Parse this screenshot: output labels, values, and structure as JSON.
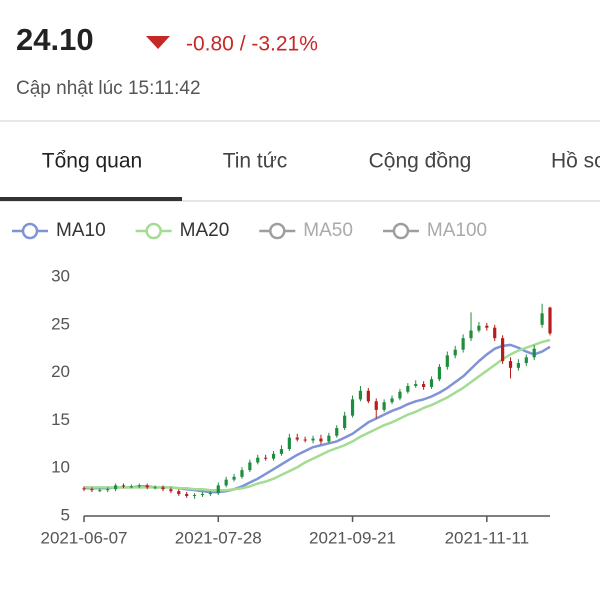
{
  "header": {
    "price": "24.10",
    "change": "-0.80 / -3.21%",
    "updated": "Cập nhật lúc 15:11:42"
  },
  "tabs": [
    "Tổng quan",
    "Tin tức",
    "Cộng đồng",
    "Hồ sơ"
  ],
  "chart_data": {
    "type": "candlestick",
    "categories": [
      "2021-06-07",
      null,
      null,
      null,
      null,
      null,
      null,
      null,
      null,
      null,
      null,
      null,
      null,
      null,
      null,
      null,
      null,
      "2021-07-28",
      null,
      null,
      null,
      null,
      null,
      null,
      null,
      null,
      null,
      null,
      null,
      null,
      null,
      null,
      null,
      null,
      "2021-09-21",
      null,
      null,
      null,
      null,
      null,
      null,
      null,
      null,
      null,
      null,
      null,
      null,
      null,
      null,
      null,
      null,
      "2021-11-11",
      null,
      null,
      null,
      null,
      null,
      null,
      null,
      null
    ],
    "open": [
      7.9,
      7.8,
      7.7,
      7.7,
      7.8,
      8.2,
      8.1,
      8.1,
      8.2,
      8.0,
      8.0,
      7.8,
      7.6,
      7.3,
      7.1,
      7.2,
      7.3,
      7.4,
      8.2,
      8.8,
      9.1,
      9.8,
      10.6,
      11.1,
      11.0,
      11.5,
      12.0,
      13.2,
      13.0,
      12.9,
      13.1,
      12.8,
      13.4,
      14.2,
      15.5,
      17.2,
      18.1,
      17.0,
      16.1,
      16.9,
      17.3,
      18.0,
      18.6,
      18.8,
      18.5,
      19.3,
      20.6,
      21.8,
      22.4,
      23.6,
      24.4,
      24.9,
      24.7,
      23.6,
      21.2,
      20.5,
      21.0,
      21.6,
      25.0,
      26.8
    ],
    "high": [
      8.1,
      8.0,
      7.9,
      8.0,
      8.4,
      8.4,
      8.3,
      8.4,
      8.4,
      8.2,
      8.2,
      8.0,
      7.8,
      7.5,
      7.4,
      7.5,
      7.6,
      8.5,
      9.1,
      9.4,
      10.1,
      10.9,
      11.4,
      11.4,
      11.8,
      12.4,
      13.6,
      13.6,
      13.3,
      13.4,
      13.5,
      13.7,
      14.5,
      15.9,
      17.6,
      18.6,
      18.4,
      17.3,
      17.2,
      17.6,
      18.3,
      18.9,
      19.2,
      19.1,
      19.6,
      20.9,
      22.2,
      22.8,
      24.0,
      26.3,
      25.3,
      25.2,
      25.0,
      23.9,
      21.6,
      21.4,
      21.9,
      22.9,
      27.2,
      26.9
    ],
    "low": [
      7.6,
      7.5,
      7.5,
      7.5,
      7.6,
      7.9,
      7.9,
      7.9,
      7.8,
      7.8,
      7.6,
      7.4,
      7.1,
      6.9,
      6.8,
      7.0,
      7.1,
      7.2,
      8.0,
      8.6,
      8.9,
      9.6,
      10.4,
      10.8,
      10.8,
      11.3,
      11.8,
      12.8,
      12.7,
      12.6,
      12.5,
      12.6,
      13.2,
      14.0,
      15.3,
      17.0,
      16.8,
      15.2,
      15.9,
      16.7,
      17.1,
      17.8,
      18.4,
      18.2,
      18.3,
      19.1,
      20.3,
      21.5,
      22.1,
      23.3,
      24.2,
      24.4,
      23.3,
      20.9,
      19.4,
      20.2,
      20.7,
      21.3,
      24.7,
      23.9
    ],
    "close": [
      7.8,
      7.7,
      7.7,
      7.8,
      8.2,
      8.1,
      8.1,
      8.2,
      8.0,
      8.0,
      7.8,
      7.6,
      7.3,
      7.1,
      7.2,
      7.3,
      7.4,
      8.2,
      8.8,
      9.1,
      9.8,
      10.6,
      11.1,
      11.0,
      11.5,
      12.0,
      13.2,
      13.0,
      12.9,
      13.1,
      12.8,
      13.4,
      14.2,
      15.5,
      17.2,
      18.1,
      17.0,
      16.1,
      16.9,
      17.3,
      18.0,
      18.6,
      18.8,
      18.5,
      19.3,
      20.6,
      21.8,
      22.4,
      23.6,
      24.4,
      24.9,
      24.7,
      23.6,
      21.2,
      20.5,
      21.0,
      21.6,
      22.5,
      26.2,
      24.1
    ],
    "up_color": "#1e8e3e",
    "down_color": "#b71c1c",
    "ylim": [
      5,
      30
    ],
    "yticks": [
      5,
      10,
      15,
      20,
      25,
      30
    ],
    "series": [
      {
        "name": "MA10",
        "color": "#7f93d6",
        "active": true,
        "values": [
          7.9,
          7.9,
          7.9,
          7.9,
          8.0,
          8.0,
          8.0,
          8.1,
          8.1,
          8.0,
          8.0,
          8.0,
          7.9,
          7.8,
          7.7,
          7.6,
          7.5,
          7.5,
          7.6,
          7.8,
          8.1,
          8.5,
          8.9,
          9.4,
          9.9,
          10.4,
          10.9,
          11.4,
          11.8,
          12.2,
          12.4,
          12.6,
          12.8,
          13.2,
          13.6,
          14.2,
          14.8,
          15.2,
          15.6,
          16.0,
          16.3,
          16.7,
          17.0,
          17.2,
          17.5,
          17.9,
          18.4,
          19.0,
          19.6,
          20.4,
          21.2,
          21.9,
          22.5,
          22.8,
          22.9,
          22.6,
          22.2,
          21.9,
          22.2,
          22.7
        ]
      },
      {
        "name": "MA20",
        "color": "#a3dc92",
        "active": true,
        "values": [
          8.0,
          8.0,
          8.0,
          8.0,
          8.0,
          8.0,
          8.0,
          8.0,
          8.0,
          8.0,
          8.0,
          8.0,
          7.9,
          7.9,
          7.8,
          7.8,
          7.7,
          7.7,
          7.7,
          7.8,
          7.9,
          8.1,
          8.4,
          8.6,
          8.9,
          9.3,
          9.7,
          10.1,
          10.6,
          11.0,
          11.4,
          11.8,
          12.1,
          12.4,
          12.8,
          13.3,
          13.7,
          14.1,
          14.5,
          14.8,
          15.2,
          15.6,
          15.9,
          16.3,
          16.6,
          17.0,
          17.4,
          17.9,
          18.4,
          19.0,
          19.6,
          20.2,
          20.8,
          21.4,
          21.9,
          22.3,
          22.6,
          22.9,
          23.2,
          23.4
        ]
      },
      {
        "name": "MA50",
        "color": "#9e9e9e",
        "active": false
      },
      {
        "name": "MA100",
        "color": "#9e9e9e",
        "active": false
      }
    ]
  }
}
